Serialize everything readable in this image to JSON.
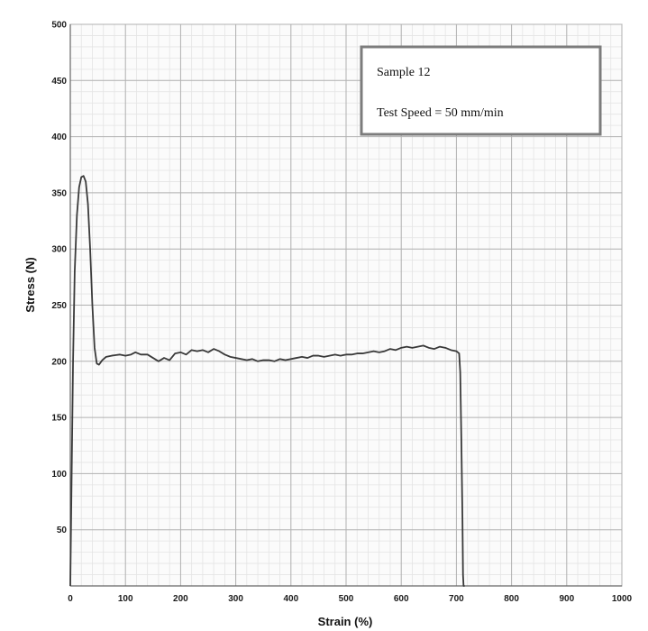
{
  "chart_data": {
    "type": "line",
    "title": "",
    "xlabel": "Strain (%)",
    "ylabel": "Stress (N)",
    "xlim": [
      0,
      1000
    ],
    "ylim": [
      0,
      500
    ],
    "x_ticks": [
      "0",
      "100",
      "200",
      "300",
      "400",
      "500",
      "600",
      "700",
      "800",
      "900",
      "1000"
    ],
    "y_ticks": [
      "50",
      "100",
      "150",
      "200",
      "250",
      "300",
      "350",
      "400",
      "450",
      "500"
    ],
    "grid": true,
    "annotation": {
      "lines": [
        "Sample 12",
        "Test Speed = 50 mm/min"
      ],
      "placement": "top-right"
    },
    "line_color": "#3a3a3a",
    "series": [
      {
        "points": [
          [
            0,
            0
          ],
          [
            2,
            80
          ],
          [
            5,
            200
          ],
          [
            8,
            280
          ],
          [
            12,
            330
          ],
          [
            16,
            355
          ],
          [
            20,
            364
          ],
          [
            24,
            365
          ],
          [
            28,
            360
          ],
          [
            32,
            340
          ],
          [
            36,
            300
          ],
          [
            40,
            250
          ],
          [
            44,
            212
          ],
          [
            48,
            198
          ],
          [
            52,
            197
          ],
          [
            58,
            201
          ],
          [
            65,
            204
          ],
          [
            75,
            205
          ],
          [
            90,
            206
          ],
          [
            100,
            205
          ],
          [
            110,
            206
          ],
          [
            118,
            208
          ],
          [
            128,
            206
          ],
          [
            140,
            206
          ],
          [
            150,
            203
          ],
          [
            160,
            200
          ],
          [
            170,
            203
          ],
          [
            180,
            201
          ],
          [
            190,
            207
          ],
          [
            200,
            208
          ],
          [
            210,
            206
          ],
          [
            220,
            210
          ],
          [
            230,
            209
          ],
          [
            240,
            210
          ],
          [
            250,
            208
          ],
          [
            260,
            211
          ],
          [
            270,
            209
          ],
          [
            280,
            206
          ],
          [
            290,
            204
          ],
          [
            300,
            203
          ],
          [
            310,
            202
          ],
          [
            320,
            201
          ],
          [
            330,
            202
          ],
          [
            340,
            200
          ],
          [
            350,
            201
          ],
          [
            360,
            201
          ],
          [
            370,
            200
          ],
          [
            380,
            202
          ],
          [
            390,
            201
          ],
          [
            400,
            202
          ],
          [
            410,
            203
          ],
          [
            420,
            204
          ],
          [
            430,
            203
          ],
          [
            440,
            205
          ],
          [
            450,
            205
          ],
          [
            460,
            204
          ],
          [
            470,
            205
          ],
          [
            480,
            206
          ],
          [
            490,
            205
          ],
          [
            500,
            206
          ],
          [
            510,
            206
          ],
          [
            520,
            207
          ],
          [
            530,
            207
          ],
          [
            540,
            208
          ],
          [
            550,
            209
          ],
          [
            560,
            208
          ],
          [
            570,
            209
          ],
          [
            580,
            211
          ],
          [
            590,
            210
          ],
          [
            600,
            212
          ],
          [
            610,
            213
          ],
          [
            620,
            212
          ],
          [
            630,
            213
          ],
          [
            640,
            214
          ],
          [
            650,
            212
          ],
          [
            660,
            211
          ],
          [
            670,
            213
          ],
          [
            680,
            212
          ],
          [
            690,
            210
          ],
          [
            700,
            209
          ],
          [
            705,
            207
          ],
          [
            707,
            190
          ],
          [
            709,
            130
          ],
          [
            711,
            60
          ],
          [
            712,
            10
          ],
          [
            713,
            0
          ],
          [
            715,
            0
          ]
        ]
      }
    ]
  }
}
